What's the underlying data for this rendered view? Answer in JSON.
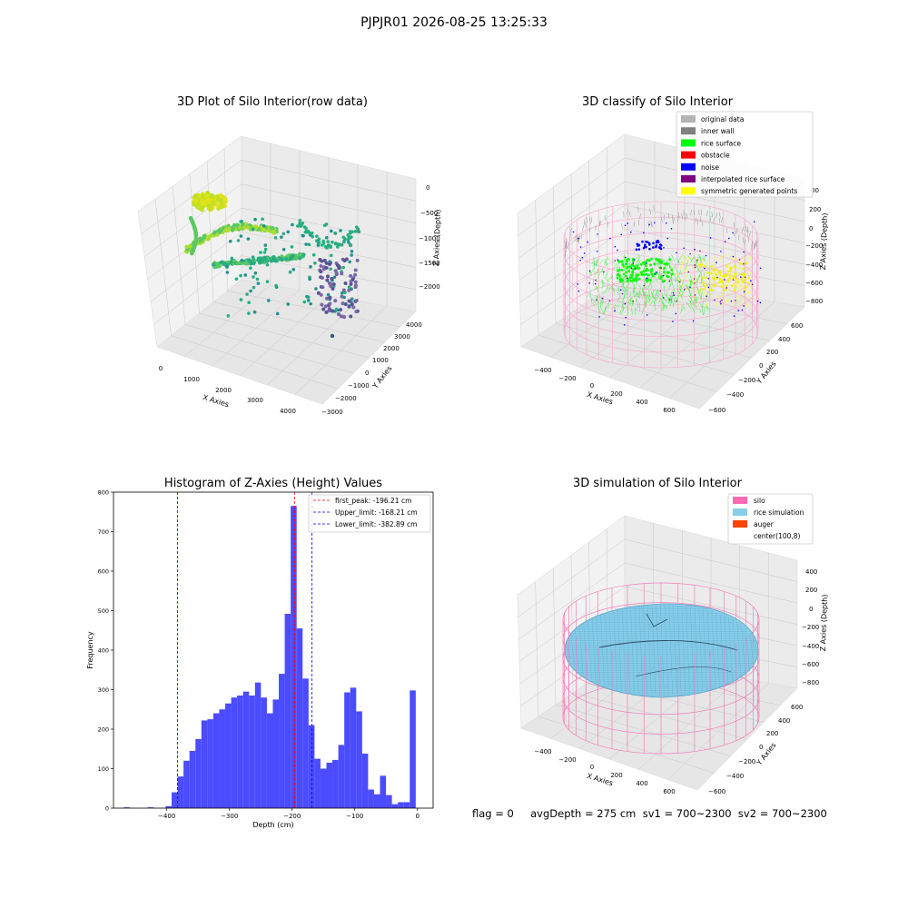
{
  "suptitle": "PJPJR01 2026-08-25 13:25:33",
  "bottom_text": "flag = 0     avgDepth = 275 cm  sv1 = 700~2300  sv2 = 700~2300",
  "colors": {
    "histogram_bars": "#4b4bff",
    "first_peak_line": "#ff0000",
    "limit_lines": "#0000ff",
    "original": "#b3b3b3",
    "inner_wall": "#808080",
    "rice_surface": "#00ff00",
    "obstacle": "#ff0000",
    "noise": "#0000ff",
    "interpolated": "#800080",
    "symmetric": "#ffff00",
    "silo": "#ff69b4",
    "rice_simulation": "#87ceeb",
    "auger": "#ff4500"
  },
  "panels": {
    "raw": {
      "title": "3D Plot of Silo Interior(row data)",
      "xlabel": "X Axies",
      "ylabel": "Y Axies",
      "zlabel": "Z Axies (Depth)",
      "xticks": [
        "0",
        "1000",
        "2000",
        "3000",
        "4000"
      ],
      "yticks": [
        "−3000",
        "−2000",
        "−1000",
        "0",
        "1000",
        "2000",
        "3000",
        "4000"
      ],
      "zticks": [
        "0",
        "−500",
        "−1000",
        "−1500",
        "−2000"
      ]
    },
    "classify": {
      "title": "3D classify of Silo Interior",
      "xlabel": "X Axies",
      "ylabel": "Y Axies",
      "zlabel": "Z Axies (Depth)",
      "xticks": [
        "−400",
        "−200",
        "0",
        "200",
        "400",
        "600"
      ],
      "yticks": [
        "−600",
        "−400",
        "−200",
        "0",
        "200",
        "400",
        "600"
      ],
      "zticks": [
        "200",
        "0",
        "−200",
        "−400",
        "−600",
        "−800"
      ],
      "zticks_clipped": "00",
      "legend": [
        {
          "label": "original data",
          "color": "#b3b3b3"
        },
        {
          "label": "inner wall",
          "color": "#808080"
        },
        {
          "label": "rice surface",
          "color": "#00ff00"
        },
        {
          "label": "obstacle",
          "color": "#ff0000"
        },
        {
          "label": "noise",
          "color": "#0000ff"
        },
        {
          "label": "interpolated rice surface",
          "color": "#800080"
        },
        {
          "label": "symmetric generated points",
          "color": "#ffff00"
        }
      ]
    },
    "sim": {
      "title": "3D simulation of Silo Interior",
      "xlabel": "X Axies",
      "ylabel": "Y Axies",
      "zlabel": "Z Axies (Depth)",
      "xticks": [
        "−400",
        "−200",
        "0",
        "200",
        "400",
        "600"
      ],
      "yticks": [
        "−600",
        "−400",
        "−200",
        "0",
        "200",
        "400",
        "600"
      ],
      "zticks": [
        "400",
        "200",
        "0",
        "−200",
        "−400",
        "−600",
        "−800"
      ],
      "legend": [
        {
          "label": "silo",
          "color": "#ff69b4"
        },
        {
          "label": "rice simulation",
          "color": "#87ceeb"
        },
        {
          "label": "auger",
          "color": "#ff4500"
        },
        {
          "label": "center(100,8)",
          "color": ""
        }
      ]
    }
  },
  "chart_data": [
    {
      "type": "scatter3d",
      "title": "3D Plot of Silo Interior(row data)",
      "xlabel": "X Axies",
      "ylabel": "Y Axies",
      "zlabel": "Z Axies (Depth)",
      "xlim": [
        -500,
        4500
      ],
      "ylim": [
        -3500,
        4500
      ],
      "zlim": [
        -2500,
        100
      ],
      "colormap": "viridis",
      "series": [
        {
          "points": [
            [
              -200,
              -1500,
              -150
            ],
            [
              0,
              -800,
              -250
            ],
            [
              200,
              0,
              -350
            ],
            [
              1000,
              3800,
              -1450
            ],
            [
              1500,
              3500,
              -1550
            ],
            [
              2000,
              3000,
              -1650
            ],
            [
              2500,
              2500,
              -1750
            ],
            [
              3000,
              2000,
              -1850
            ],
            [
              3500,
              1500,
              -1950
            ],
            [
              3800,
              1200,
              -2050
            ]
          ]
        }
      ]
    },
    {
      "type": "histogram",
      "title": "Histogram of Z-Axies (Height) Values",
      "xlabel": "Depth (cm)",
      "ylabel": "Frequency",
      "xlim": [
        -485,
        25
      ],
      "ylim": [
        0,
        800
      ],
      "xticks": [
        -400,
        -300,
        -200,
        -100,
        0
      ],
      "yticks": [
        0,
        100,
        200,
        300,
        400,
        500,
        600,
        700,
        800
      ],
      "bin_width": 9.5,
      "bins": [
        {
          "x": -464,
          "count": 2
        },
        {
          "x": -426,
          "count": 2
        },
        {
          "x": -397,
          "count": 5
        },
        {
          "x": -387.5,
          "count": 40
        },
        {
          "x": -378,
          "count": 80
        },
        {
          "x": -368.5,
          "count": 120
        },
        {
          "x": -359,
          "count": 145
        },
        {
          "x": -349.5,
          "count": 175
        },
        {
          "x": -340,
          "count": 222
        },
        {
          "x": -330.5,
          "count": 225
        },
        {
          "x": -321,
          "count": 240
        },
        {
          "x": -311.5,
          "count": 250
        },
        {
          "x": -302,
          "count": 265
        },
        {
          "x": -292.5,
          "count": 280
        },
        {
          "x": -283,
          "count": 285
        },
        {
          "x": -273.5,
          "count": 295
        },
        {
          "x": -264,
          "count": 285
        },
        {
          "x": -254.5,
          "count": 318
        },
        {
          "x": -245,
          "count": 280
        },
        {
          "x": -235.5,
          "count": 240
        },
        {
          "x": -226,
          "count": 275
        },
        {
          "x": -216.5,
          "count": 340
        },
        {
          "x": -207,
          "count": 492
        },
        {
          "x": -197.5,
          "count": 765
        },
        {
          "x": -188,
          "count": 455
        },
        {
          "x": -178.5,
          "count": 328
        },
        {
          "x": -169,
          "count": 210
        },
        {
          "x": -159.5,
          "count": 125
        },
        {
          "x": -150,
          "count": 100
        },
        {
          "x": -140.5,
          "count": 115
        },
        {
          "x": -131,
          "count": 122
        },
        {
          "x": -121.5,
          "count": 160
        },
        {
          "x": -112,
          "count": 293
        },
        {
          "x": -102.5,
          "count": 305
        },
        {
          "x": -93,
          "count": 245
        },
        {
          "x": -83.5,
          "count": 138
        },
        {
          "x": -74,
          "count": 47
        },
        {
          "x": -64.5,
          "count": 35
        },
        {
          "x": -55,
          "count": 82
        },
        {
          "x": -45.5,
          "count": 33
        },
        {
          "x": -36,
          "count": 10
        },
        {
          "x": -26.5,
          "count": 15
        },
        {
          "x": -17,
          "count": 15
        },
        {
          "x": -7.5,
          "count": 298
        }
      ],
      "vlines": [
        {
          "label": "first_peak: -196.21 cm",
          "x": -196.21,
          "color": "#ff0000",
          "style": "dashed"
        },
        {
          "label": "Upper_limit: -168.21 cm",
          "x": -168.21,
          "color": "#0000ff",
          "style": "dashed"
        },
        {
          "label": "Lower_limit: -382.89 cm",
          "x": -382.89,
          "color": "#0000ff",
          "style": "dashed"
        }
      ],
      "legend_position": "top-right"
    },
    {
      "type": "scatter3d",
      "title": "3D classify of Silo Interior",
      "xlabel": "X Axies",
      "ylabel": "Y Axies",
      "zlabel": "Z Axies (Depth)",
      "xlim": [
        -550,
        700
      ],
      "ylim": [
        -700,
        700
      ],
      "zlim": [
        -900,
        350
      ],
      "legend_position": "top-right"
    },
    {
      "type": "surface3d",
      "title": "3D simulation of Silo Interior",
      "xlabel": "X Axies",
      "ylabel": "Y Axies",
      "zlabel": "Z Axies (Depth)",
      "xlim": [
        -550,
        700
      ],
      "ylim": [
        -700,
        700
      ],
      "zlim": [
        -900,
        450
      ],
      "legend_position": "top-right"
    }
  ]
}
